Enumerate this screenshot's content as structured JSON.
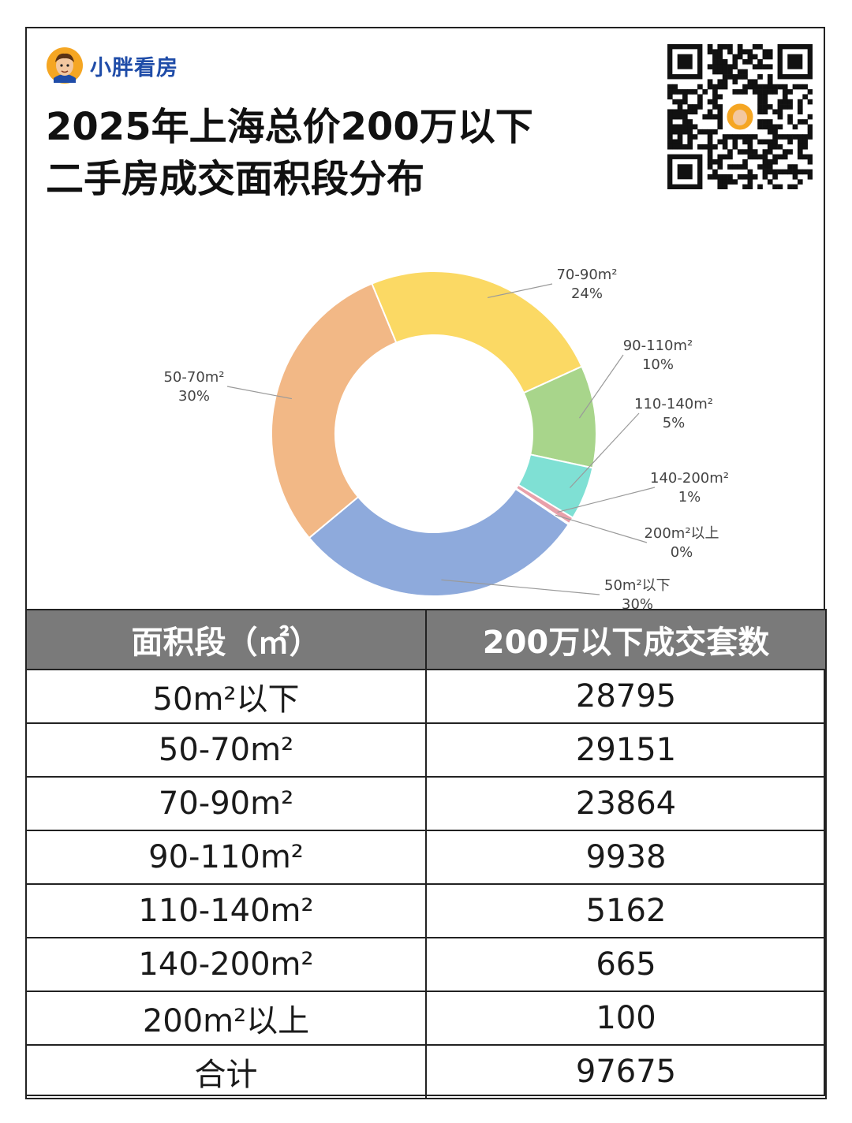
{
  "brand": {
    "name": "小胖看房"
  },
  "title": {
    "line1": "2025年上海总价200万以下",
    "line2": "二手房成交面积段分布"
  },
  "chart_data": {
    "type": "pie",
    "variant": "donut",
    "labels": [
      "50m²以下",
      "50-70m²",
      "70-90m²",
      "90-110m²",
      "110-140m²",
      "140-200m²",
      "200m²以上"
    ],
    "values": [
      28795,
      29151,
      23864,
      9938,
      5162,
      665,
      100
    ],
    "percent_labels": [
      "30%",
      "30%",
      "24%",
      "10%",
      "5%",
      "1%",
      "0%"
    ],
    "colors": [
      "#8eaadc",
      "#f2b886",
      "#fbd964",
      "#a8d58b",
      "#7fe0d4",
      "#e8a0aa",
      "#c8c8c8"
    ]
  },
  "table": {
    "headers": [
      "面积段（㎡）",
      "200万以下成交套数"
    ],
    "rows": [
      [
        "50m²以下",
        "28795"
      ],
      [
        "50-70m²",
        "29151"
      ],
      [
        "70-90m²",
        "23864"
      ],
      [
        "90-110m²",
        "9938"
      ],
      [
        "110-140m²",
        "5162"
      ],
      [
        "140-200m²",
        "665"
      ],
      [
        "200m²以上",
        "100"
      ],
      [
        "合计",
        "97675"
      ]
    ]
  }
}
